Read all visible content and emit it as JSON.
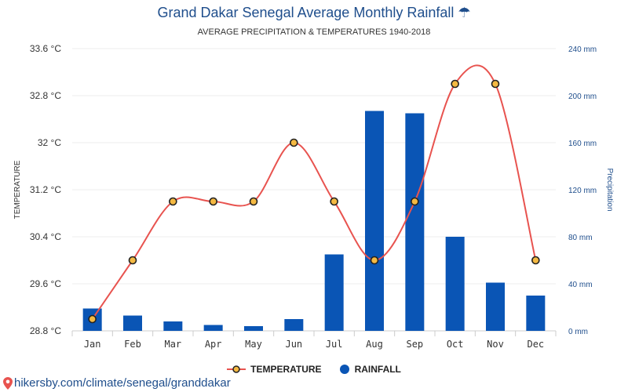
{
  "title": "Grand Dakar Senegal Average Monthly Rainfall ☂",
  "subtitle": "AVERAGE PRECIPITATION & TEMPERATURES 1940-2018",
  "source_url": "hikersby.com/climate/senegal/granddakar",
  "chart_data": {
    "type": "bar",
    "categories": [
      "Jan",
      "Feb",
      "Mar",
      "Apr",
      "May",
      "Jun",
      "Jul",
      "Aug",
      "Sep",
      "Oct",
      "Nov",
      "Dec"
    ],
    "series": [
      {
        "name": "TEMPERATURE",
        "type": "line",
        "axis": "left",
        "color": "#e8534f",
        "marker_fill": "#f4b942",
        "values": [
          29.0,
          30.0,
          31.0,
          31.0,
          31.0,
          32.0,
          31.0,
          30.0,
          31.0,
          33.0,
          33.0,
          30.0
        ]
      },
      {
        "name": "RAINFALL",
        "type": "bar",
        "axis": "right",
        "color": "#0a55b5",
        "values": [
          19,
          13,
          8,
          5,
          4,
          10,
          65,
          187,
          185,
          80,
          41,
          30
        ]
      }
    ],
    "ylabel": "TEMPERATURE",
    "y2label": "Precipitation",
    "yticks": [
      "28.8 °C",
      "29.6 °C",
      "30.4 °C",
      "31.2 °C",
      "32 °C",
      "32.8 °C",
      "33.6 °C"
    ],
    "y2ticks": [
      "0 mm",
      "40 mm",
      "80 mm",
      "120 mm",
      "160 mm",
      "200 mm",
      "240 mm"
    ],
    "ylim": [
      28.8,
      33.6
    ],
    "y2lim": [
      0,
      240
    ],
    "grid": true,
    "legend_position": "bottom-center"
  }
}
